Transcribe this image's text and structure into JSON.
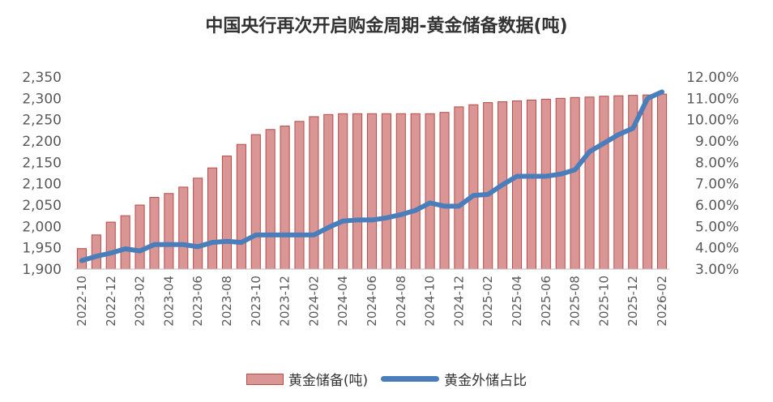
{
  "chart_data": {
    "type": "bar+line",
    "title": "中国央行再次开启购金周期-黄金储备数据(吨)",
    "categories": [
      "2022-10",
      "2022-11",
      "2022-12",
      "2023-01",
      "2023-02",
      "2023-03",
      "2023-04",
      "2023-05",
      "2023-06",
      "2023-07",
      "2023-08",
      "2023-09",
      "2023-10",
      "2023-11",
      "2023-12",
      "2024-01",
      "2024-02",
      "2024-03",
      "2024-04",
      "2024-05",
      "2024-06",
      "2024-07",
      "2024-08",
      "2024-09",
      "2024-10",
      "2024-11",
      "2024-12",
      "2025-01",
      "2025-02",
      "2025-03",
      "2025-04",
      "2025-05",
      "2025-06",
      "2025-07",
      "2025-08",
      "2025-09",
      "2025-10",
      "2025-11",
      "2025-12",
      "2026-01",
      "2026-02"
    ],
    "x_tick_labels": [
      "2022-10",
      "2022-12",
      "2023-02",
      "2023-04",
      "2023-06",
      "2023-08",
      "2023-10",
      "2023-12",
      "2024-02",
      "2024-04",
      "2024-06",
      "2024-08",
      "2024-10",
      "2024-12",
      "2025-02",
      "2025-04",
      "2025-06",
      "2025-08",
      "2025-10",
      "2025-12",
      "2026-02"
    ],
    "series": [
      {
        "name": "黄金储备(吨)",
        "type": "bar",
        "axis": "left",
        "color": "#d99694",
        "edge_color": "#b84a4a",
        "values": [
          1948,
          1980,
          2010,
          2025,
          2050,
          2068,
          2077,
          2092,
          2113,
          2137,
          2165,
          2192,
          2215,
          2227,
          2235,
          2246,
          2257,
          2262,
          2264,
          2264,
          2264,
          2264,
          2264,
          2264,
          2264,
          2267,
          2280,
          2285,
          2290,
          2292,
          2294,
          2296,
          2298,
          2300,
          2302,
          2303,
          2305,
          2306,
          2307,
          2308,
          2310
        ]
      },
      {
        "name": "黄金外储占比",
        "type": "line",
        "axis": "right",
        "color": "#4a7ebb",
        "values": [
          3.4,
          3.6,
          3.75,
          3.95,
          3.85,
          4.15,
          4.15,
          4.15,
          4.05,
          4.25,
          4.3,
          4.25,
          4.6,
          4.6,
          4.6,
          4.6,
          4.6,
          4.95,
          5.25,
          5.3,
          5.3,
          5.4,
          5.55,
          5.75,
          6.1,
          5.95,
          5.95,
          6.45,
          6.5,
          6.95,
          7.35,
          7.35,
          7.35,
          7.45,
          7.65,
          8.5,
          8.9,
          9.3,
          9.6,
          11.0,
          11.3
        ]
      }
    ],
    "y_left": {
      "min": 1900,
      "max": 2350,
      "step": 50,
      "tick_labels": [
        "1,900",
        "1,950",
        "2,000",
        "2,050",
        "2,100",
        "2,150",
        "2,200",
        "2,250",
        "2,300",
        "2,350"
      ]
    },
    "y_right": {
      "min": 3.0,
      "max": 12.0,
      "step": 1.0,
      "tick_labels": [
        "3.00%",
        "4.00%",
        "5.00%",
        "6.00%",
        "7.00%",
        "8.00%",
        "9.00%",
        "10.00%",
        "11.00%",
        "12.00%"
      ]
    },
    "grid": false,
    "legend_position": "bottom"
  }
}
